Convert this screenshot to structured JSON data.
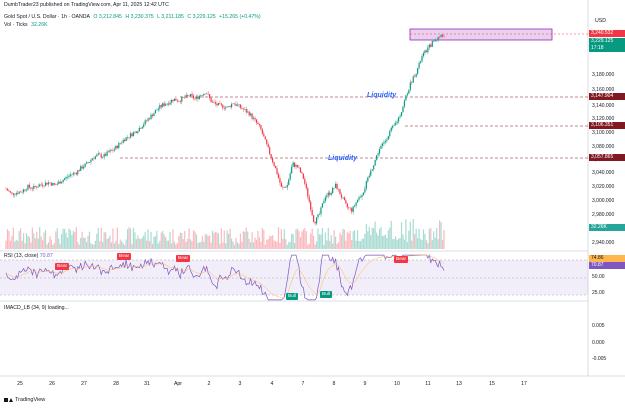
{
  "header": {
    "published_line": "DumbTrader23 published on TradingView.com, Apr 11, 2025 12:42 UTC",
    "symbol": "Gold Spot / U.S. Dollar · 1h · OANDA",
    "ohlc_o": "O 3,212.845",
    "ohlc_h": "H 3,230.375",
    "ohlc_l": "L 3,211.185",
    "ohlc_c": "C 3,229.125",
    "change": "+15.265 (+0.47%)",
    "vol_label": "Vol · Ticks",
    "vol_value": "32.26K"
  },
  "price_axis": {
    "currency": "USD",
    "labels": [
      "3,180.000",
      "3,160.000",
      "3,140.000",
      "3,120.000",
      "3,100.000",
      "3,080.000",
      "3,060.000",
      "3,040.000",
      "3,020.000",
      "3,000.000",
      "2,980.000",
      "2,960.000",
      "2,940.000"
    ],
    "tags": [
      {
        "text": "3,240.532",
        "color": "#f23645"
      },
      {
        "text": "3,229.125",
        "color": "#089981"
      },
      {
        "text": "17:18",
        "color": "#089981"
      },
      {
        "text": "3,147.904",
        "color": "#801922"
      },
      {
        "text": "3,106.351",
        "color": "#801922"
      },
      {
        "text": "3,057.865",
        "color": "#801922"
      },
      {
        "text": "32.26K",
        "color": "#26a69a"
      }
    ]
  },
  "annotations": {
    "liquidity_1": "Liquidity",
    "liquidity_2": "Liquidity"
  },
  "rsi": {
    "label": "RSI (13, close)",
    "value_1": "70.87",
    "value_2": "74.86",
    "axis": [
      "74.86",
      "70.87",
      "50.00",
      "25.00"
    ],
    "badges": {
      "bear": "Bear",
      "bull": "Bull"
    }
  },
  "macd": {
    "label": "IMACD_LB (34, 9) loading...",
    "axis": [
      "0.005",
      "0.000",
      "-0.005"
    ]
  },
  "time_axis": [
    "25",
    "26",
    "27",
    "28",
    "31",
    "Apr",
    "2",
    "3",
    "4",
    "7",
    "8",
    "9",
    "10",
    "11",
    "13",
    "15",
    "17"
  ],
  "footer": {
    "brand": "TradingView"
  },
  "colors": {
    "up": "#089981",
    "down": "#f23645",
    "rsi": "#7e57c2",
    "level": "#801922",
    "zone": "#9c27b0"
  },
  "chart_data": {
    "type": "candlestick",
    "title": "Gold Spot / U.S. Dollar · 1h · OANDA",
    "ylim": [
      2930,
      3250
    ],
    "close_path": [
      3015,
      3008,
      3010,
      3012,
      3018,
      3016,
      3020,
      3022,
      3024,
      3020,
      3025,
      3030,
      3035,
      3038,
      3045,
      3050,
      3058,
      3062,
      3060,
      3066,
      3070,
      3078,
      3085,
      3090,
      3095,
      3102,
      3110,
      3118,
      3126,
      3132,
      3135,
      3140,
      3138,
      3142,
      3145,
      3140,
      3146,
      3150,
      3136,
      3132,
      3130,
      3128,
      3135,
      3130,
      3125,
      3120,
      3110,
      3100,
      3080,
      3060,
      3040,
      3015,
      3020,
      3050,
      3045,
      3030,
      3000,
      2968,
      2980,
      3005,
      3010,
      3020,
      3005,
      2990,
      2985,
      3000,
      3010,
      3030,
      3050,
      3070,
      3080,
      3095,
      3105,
      3120,
      3145,
      3165,
      3180,
      3200,
      3210,
      3220,
      3226,
      3229
    ]
  }
}
